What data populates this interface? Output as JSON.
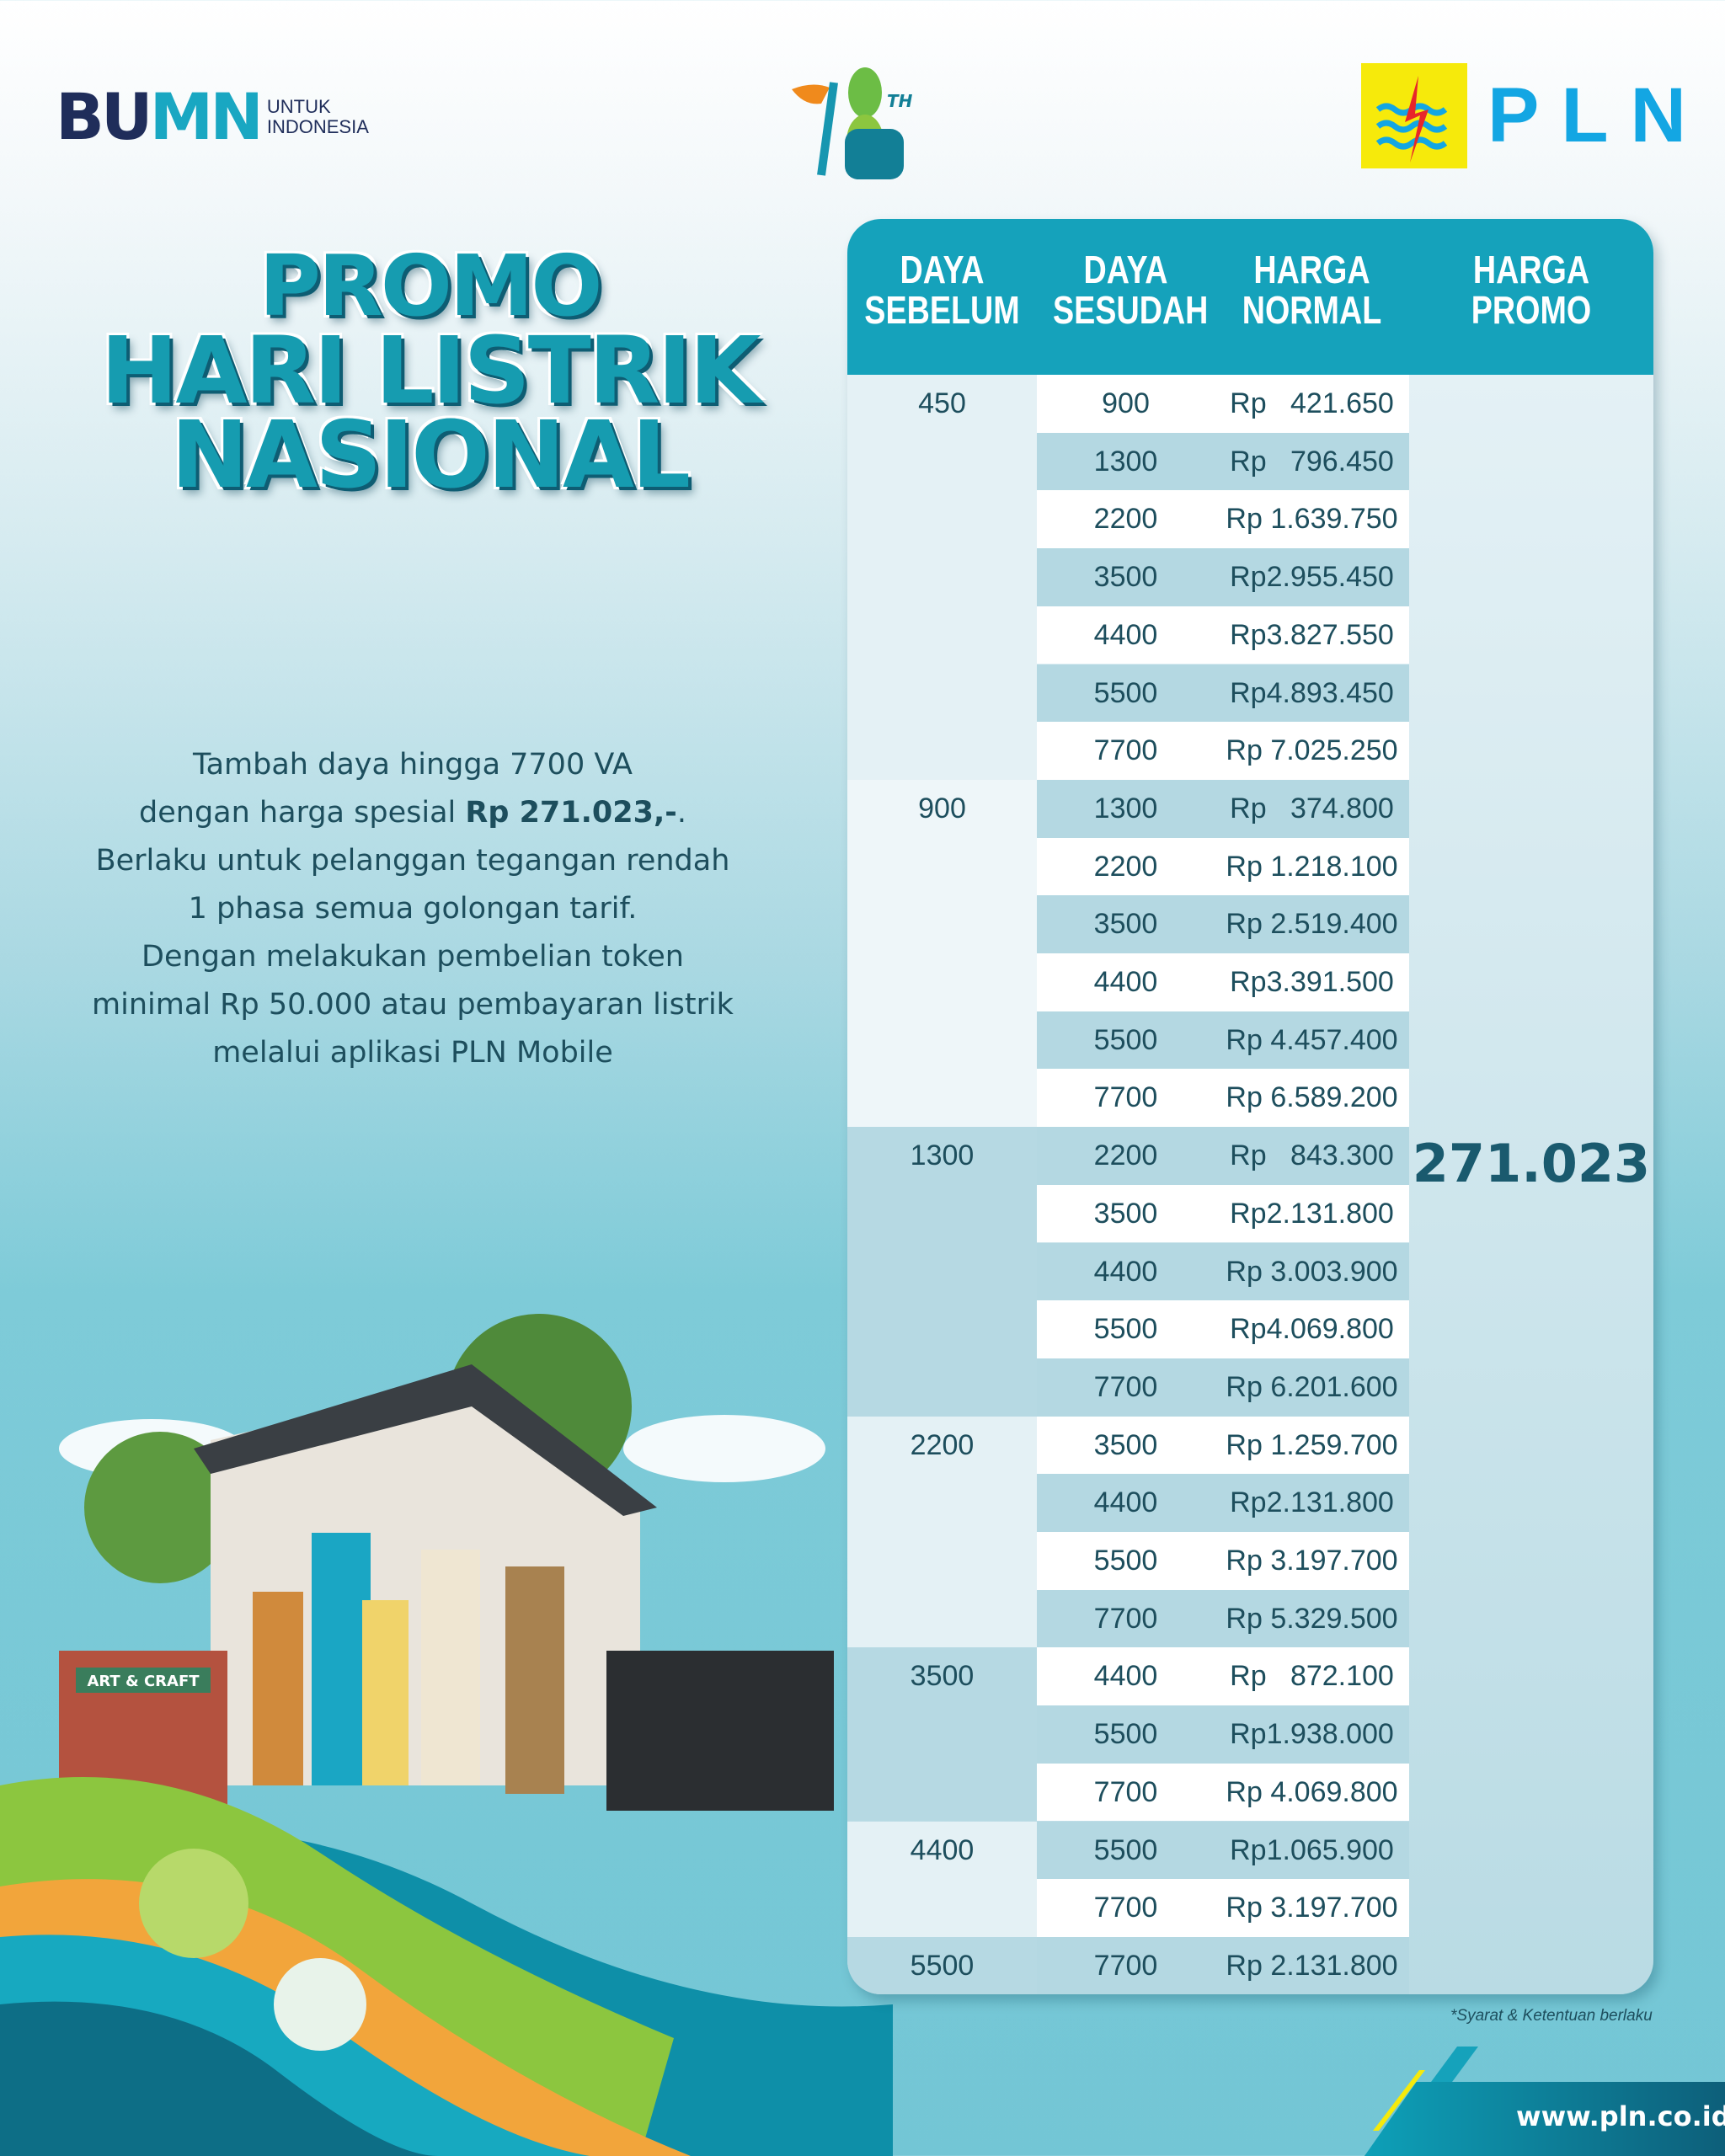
{
  "logos": {
    "bumn": {
      "mark_left": "BU",
      "mark_right": "MN",
      "line1": "UNTUK",
      "line2": "INDONESIA"
    },
    "hln": {
      "number": "78",
      "suffix": "TH",
      "text": "HARI LISTRIK NASIONAL"
    },
    "pln": {
      "text": "PLN"
    }
  },
  "title": {
    "line1": "PROMO",
    "line2": "HARI LISTRIK",
    "line3": "NASIONAL"
  },
  "description": {
    "line1": "Tambah daya hingga 7700 VA",
    "line2_pre": "dengan harga spesial ",
    "line2_bold": "Rp 271.023,-",
    "line2_post": ".",
    "line3": "Berlaku untuk pelanggan tegangan rendah",
    "line4": "1 phasa semua golongan tarif.",
    "line5": "Dengan melakukan pembelian token",
    "line6": "minimal Rp 50.000 atau pembayaran listrik",
    "line7": "melalui aplikasi PLN Mobile"
  },
  "table": {
    "headers": {
      "daya_sebelum": [
        "DAYA",
        "SEBELUM"
      ],
      "daya_sesudah": [
        "DAYA",
        "SESUDAH"
      ],
      "harga_normal": [
        "HARGA",
        "NORMAL"
      ],
      "harga_promo": [
        "HARGA",
        "PROMO"
      ]
    },
    "promo_price": "271.023",
    "groups": [
      {
        "before": "450",
        "rows": [
          [
            "900",
            "Rp   421.650"
          ],
          [
            "1300",
            "Rp   796.450"
          ],
          [
            "2200",
            "Rp 1.639.750"
          ],
          [
            "3500",
            "Rp2.955.450"
          ],
          [
            "4400",
            "Rp3.827.550"
          ],
          [
            "5500",
            "Rp4.893.450"
          ],
          [
            "7700",
            "Rp 7.025.250"
          ]
        ]
      },
      {
        "before": "900",
        "rows": [
          [
            "1300",
            "Rp   374.800"
          ],
          [
            "2200",
            "Rp 1.218.100"
          ],
          [
            "3500",
            "Rp 2.519.400"
          ],
          [
            "4400",
            "Rp3.391.500"
          ],
          [
            "5500",
            "Rp 4.457.400"
          ],
          [
            "7700",
            "Rp 6.589.200"
          ]
        ]
      },
      {
        "before": "1300",
        "rows": [
          [
            "2200",
            "Rp   843.300"
          ],
          [
            "3500",
            "Rp2.131.800"
          ],
          [
            "4400",
            "Rp 3.003.900"
          ],
          [
            "5500",
            "Rp4.069.800"
          ],
          [
            "7700",
            "Rp 6.201.600"
          ]
        ]
      },
      {
        "before": "2200",
        "rows": [
          [
            "3500",
            "Rp 1.259.700"
          ],
          [
            "4400",
            "Rp2.131.800"
          ],
          [
            "5500",
            "Rp 3.197.700"
          ],
          [
            "7700",
            "Rp 5.329.500"
          ]
        ]
      },
      {
        "before": "3500",
        "rows": [
          [
            "4400",
            "Rp   872.100"
          ],
          [
            "5500",
            "Rp1.938.000"
          ],
          [
            "7700",
            "Rp 4.069.800"
          ]
        ]
      },
      {
        "before": "4400",
        "rows": [
          [
            "5500",
            "Rp1.065.900"
          ],
          [
            "7700",
            "Rp 3.197.700"
          ]
        ]
      },
      {
        "before": "5500",
        "rows": [
          [
            "7700",
            "Rp 2.131.800"
          ]
        ]
      }
    ]
  },
  "illustration": {
    "shop_sign": "ART & CRAFT"
  },
  "footnote": "*Syarat & Ketentuan  berlaku",
  "footer": {
    "url": "www.pln.co.id"
  },
  "colors": {
    "header": "#15a2bb",
    "text": "#1d4e5d",
    "row_alt": "#b4d8e2",
    "pln_yellow": "#f6ea0b",
    "pln_blue": "#13a6e3"
  }
}
